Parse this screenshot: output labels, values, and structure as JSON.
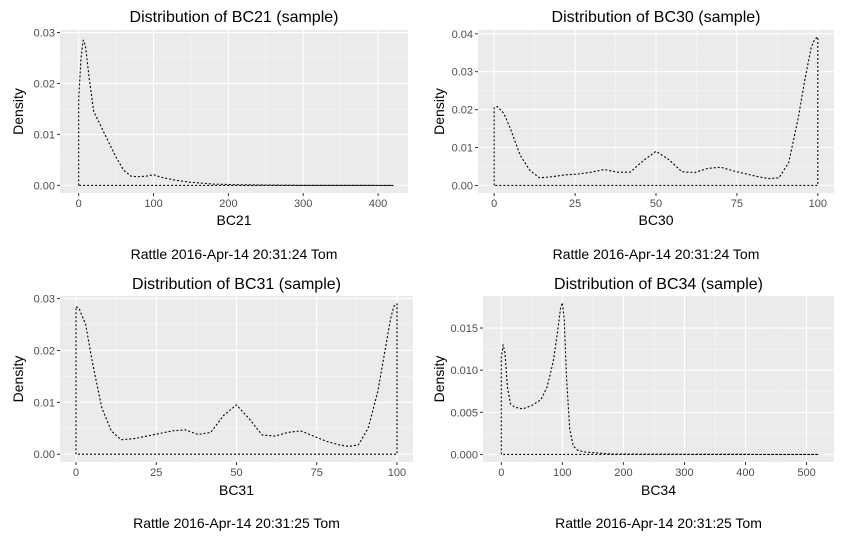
{
  "chart_data": [
    {
      "type": "area",
      "title": "Distribution of BC21 (sample)",
      "xlabel": "BC21",
      "ylabel": "Density",
      "caption": "Rattle 2016-Apr-14 20:31:24 Tom",
      "xlim": [
        -25,
        440
      ],
      "ylim": [
        -0.0015,
        0.0305
      ],
      "xticks": [
        0,
        100,
        200,
        300,
        400
      ],
      "xtick_labels": [
        "0",
        "100",
        "200",
        "300",
        "400"
      ],
      "yticks": [
        0,
        0.01,
        0.02,
        0.03
      ],
      "ytick_labels": [
        "0.00",
        "0.01",
        "0.02",
        "0.03"
      ],
      "grid": true,
      "x": [
        0,
        0,
        3,
        6,
        9,
        14,
        20,
        30,
        40,
        50,
        60,
        70,
        80,
        90,
        100,
        110,
        130,
        150,
        180,
        210,
        250,
        300,
        350,
        420
      ],
      "y": [
        0,
        0.017,
        0.025,
        0.0285,
        0.0275,
        0.021,
        0.0145,
        0.0115,
        0.0085,
        0.0055,
        0.003,
        0.0018,
        0.0017,
        0.0018,
        0.0021,
        0.0016,
        0.001,
        0.0006,
        0.00025,
        0.00012,
        7e-05,
        2e-05,
        1e-05,
        0
      ]
    },
    {
      "type": "area",
      "title": "Distribution of BC30 (sample)",
      "xlabel": "BC30",
      "ylabel": "Density",
      "caption": "Rattle 2016-Apr-14 20:31:24 Tom",
      "xlim": [
        -5,
        105
      ],
      "ylim": [
        -0.002,
        0.041
      ],
      "xticks": [
        0,
        25,
        50,
        75,
        100
      ],
      "xtick_labels": [
        "0",
        "25",
        "50",
        "75",
        "100"
      ],
      "yticks": [
        0,
        0.01,
        0.02,
        0.03,
        0.04
      ],
      "ytick_labels": [
        "0.00",
        "0.01",
        "0.02",
        "0.03",
        "0.04"
      ],
      "grid": true,
      "x": [
        0,
        0,
        1,
        3,
        5,
        8,
        11,
        14,
        18,
        22,
        26,
        30,
        34,
        38,
        42,
        46,
        50,
        54,
        58,
        62,
        66,
        70,
        74,
        78,
        82,
        85,
        88,
        91,
        94,
        96,
        98,
        99,
        100,
        100
      ],
      "y": [
        0,
        0.0205,
        0.0208,
        0.019,
        0.015,
        0.008,
        0.004,
        0.002,
        0.0023,
        0.0028,
        0.003,
        0.0035,
        0.0042,
        0.0035,
        0.0035,
        0.0065,
        0.009,
        0.0068,
        0.0036,
        0.0034,
        0.0045,
        0.0048,
        0.0038,
        0.003,
        0.0022,
        0.0018,
        0.002,
        0.006,
        0.018,
        0.028,
        0.0365,
        0.0385,
        0.0392,
        0
      ]
    },
    {
      "type": "area",
      "title": "Distribution of BC31 (sample)",
      "xlabel": "BC31",
      "ylabel": "Density",
      "caption": "Rattle 2016-Apr-14 20:31:25 Tom",
      "xlim": [
        -5,
        105
      ],
      "ylim": [
        -0.0015,
        0.0305
      ],
      "xticks": [
        0,
        25,
        50,
        75,
        100
      ],
      "xtick_labels": [
        "0",
        "25",
        "50",
        "75",
        "100"
      ],
      "yticks": [
        0,
        0.01,
        0.02,
        0.03
      ],
      "ytick_labels": [
        "0.00",
        "0.01",
        "0.02",
        "0.03"
      ],
      "grid": true,
      "x": [
        0,
        0,
        1,
        3,
        5,
        8,
        11,
        14,
        18,
        22,
        26,
        30,
        34,
        38,
        42,
        46,
        50,
        54,
        58,
        62,
        66,
        70,
        74,
        78,
        82,
        85,
        88,
        91,
        94,
        96,
        98,
        99,
        100,
        100
      ],
      "y": [
        0,
        0.0285,
        0.028,
        0.025,
        0.018,
        0.009,
        0.0045,
        0.0028,
        0.003,
        0.0035,
        0.004,
        0.0045,
        0.0047,
        0.0038,
        0.0042,
        0.0075,
        0.0095,
        0.0068,
        0.0037,
        0.0035,
        0.0042,
        0.0045,
        0.0035,
        0.0025,
        0.0018,
        0.0015,
        0.0018,
        0.005,
        0.012,
        0.019,
        0.026,
        0.0285,
        0.029,
        0
      ]
    },
    {
      "type": "area",
      "title": "Distribution of BC34 (sample)",
      "xlabel": "BC34",
      "ylabel": "Density",
      "caption": "Rattle 2016-Apr-14 20:31:25 Tom",
      "xlim": [
        -30,
        545
      ],
      "ylim": [
        -0.0009,
        0.0188
      ],
      "xticks": [
        0,
        100,
        200,
        300,
        400,
        500
      ],
      "xtick_labels": [
        "0",
        "100",
        "200",
        "300",
        "400",
        "500"
      ],
      "yticks": [
        0,
        0.005,
        0.01,
        0.015
      ],
      "ytick_labels": [
        "0.000",
        "0.005",
        "0.010",
        "0.015"
      ],
      "grid": true,
      "x": [
        0,
        0,
        3,
        6,
        10,
        15,
        22,
        35,
        50,
        65,
        75,
        85,
        92,
        97,
        100,
        103,
        107,
        112,
        118,
        125,
        135,
        150,
        180,
        250,
        350,
        450,
        520
      ],
      "y": [
        0,
        0.0115,
        0.013,
        0.012,
        0.008,
        0.006,
        0.0056,
        0.0054,
        0.0058,
        0.0065,
        0.008,
        0.011,
        0.0145,
        0.0173,
        0.018,
        0.016,
        0.009,
        0.003,
        0.001,
        0.0005,
        0.0003,
        0.0002,
        5e-05,
        2e-05,
        1e-05,
        5e-06,
        0
      ]
    }
  ]
}
